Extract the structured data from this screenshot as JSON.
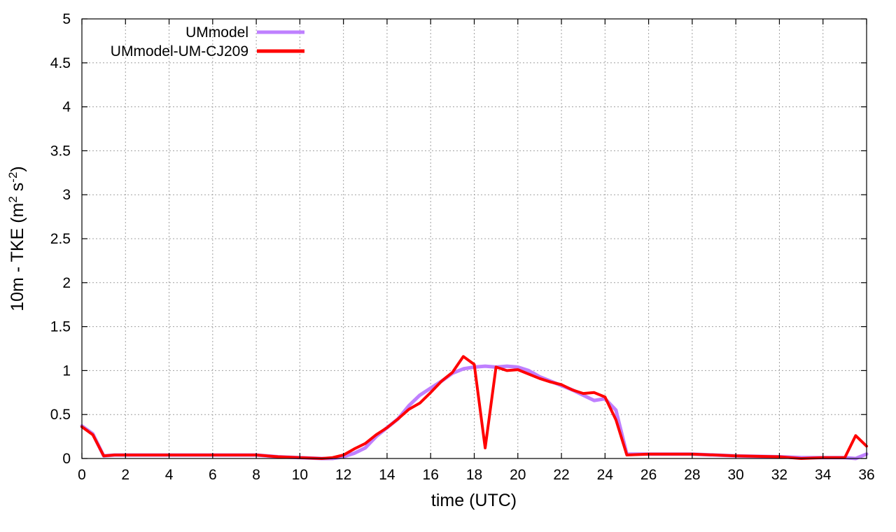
{
  "chart_data": {
    "type": "line",
    "xlabel": "time (UTC)",
    "ylabel": {
      "main": "10m - TKE (m",
      "sup1": "2",
      "mid": " s",
      "sup2": "-2",
      "end": ")"
    },
    "xlim": [
      0,
      36
    ],
    "ylim": [
      0,
      5
    ],
    "xticks": [
      0,
      2,
      4,
      6,
      8,
      10,
      12,
      14,
      16,
      18,
      20,
      22,
      24,
      26,
      28,
      30,
      32,
      34,
      36
    ],
    "yticks": [
      "0",
      "0.5",
      "1",
      "1.5",
      "2",
      "2.5",
      "3",
      "3.5",
      "4",
      "4.5",
      "5"
    ],
    "grid": true,
    "legend_position": "top-left",
    "series": [
      {
        "name": "UMmodel",
        "color": "#bf80ff",
        "x": [
          0,
          0.5,
          1,
          1.5,
          2,
          3,
          4,
          5,
          6,
          7,
          8,
          9,
          10,
          11,
          11.5,
          12,
          12.5,
          13,
          13.5,
          14,
          14.5,
          15,
          15.5,
          16,
          16.5,
          17,
          17.5,
          18,
          18.5,
          19,
          19.5,
          20,
          20.5,
          21,
          21.5,
          22,
          22.5,
          23,
          23.5,
          24,
          24.5,
          25,
          26,
          28,
          30,
          32,
          33,
          34,
          35,
          35.5,
          36
        ],
        "values": [
          0.37,
          0.28,
          0.03,
          0.04,
          0.04,
          0.04,
          0.04,
          0.04,
          0.04,
          0.04,
          0.04,
          0.02,
          0.01,
          0.0,
          0.0,
          0.02,
          0.06,
          0.12,
          0.25,
          0.35,
          0.45,
          0.6,
          0.72,
          0.8,
          0.88,
          0.97,
          1.02,
          1.04,
          1.05,
          1.04,
          1.05,
          1.04,
          1.0,
          0.93,
          0.88,
          0.83,
          0.78,
          0.72,
          0.66,
          0.68,
          0.55,
          0.05,
          0.05,
          0.05,
          0.03,
          0.02,
          0.01,
          0.01,
          0.01,
          0.0,
          0.05
        ]
      },
      {
        "name": "UMmodel-UM-CJ209",
        "color": "#ff0000",
        "x": [
          0,
          0.5,
          1,
          1.5,
          2,
          3,
          4,
          5,
          6,
          7,
          8,
          9,
          10,
          11,
          11.5,
          12,
          12.5,
          13,
          13.5,
          14,
          14.5,
          15,
          15.5,
          16,
          16.5,
          17,
          17.5,
          18,
          18.5,
          19,
          19.5,
          20,
          20.5,
          21,
          21.5,
          22,
          22.5,
          23,
          23.5,
          24,
          24.5,
          25,
          26,
          28,
          30,
          32,
          33,
          34,
          35,
          35.5,
          36
        ],
        "values": [
          0.36,
          0.27,
          0.03,
          0.04,
          0.04,
          0.04,
          0.04,
          0.04,
          0.04,
          0.04,
          0.04,
          0.02,
          0.01,
          0.0,
          0.01,
          0.04,
          0.11,
          0.17,
          0.27,
          0.35,
          0.45,
          0.56,
          0.63,
          0.75,
          0.88,
          0.98,
          1.16,
          1.07,
          0.12,
          1.04,
          1.0,
          1.01,
          0.96,
          0.91,
          0.87,
          0.84,
          0.78,
          0.74,
          0.75,
          0.7,
          0.44,
          0.04,
          0.05,
          0.05,
          0.03,
          0.02,
          0.0,
          0.01,
          0.01,
          0.26,
          0.14
        ]
      }
    ]
  }
}
